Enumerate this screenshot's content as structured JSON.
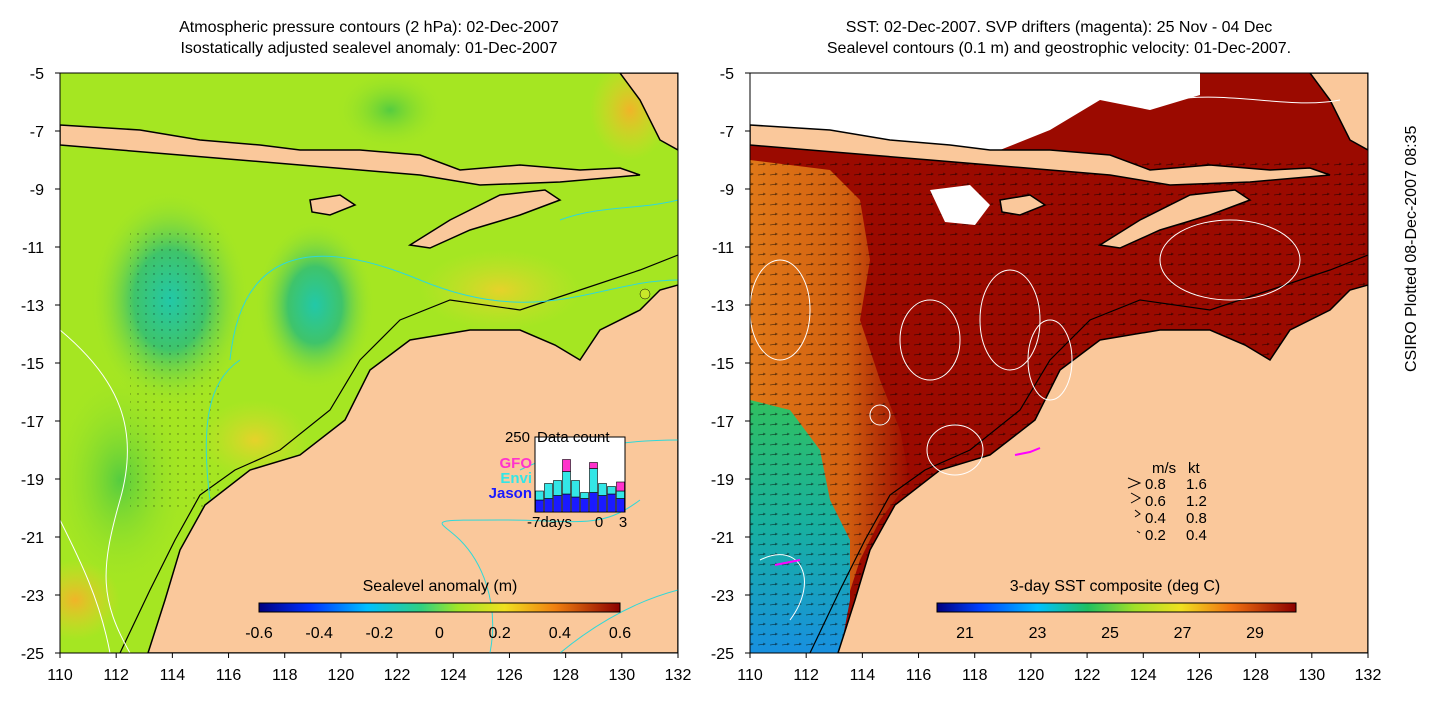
{
  "left_panel": {
    "title_line1": "Atmospheric pressure contours (2 hPa): 02-Dec-2007",
    "title_line2": "Isostatically adjusted sealevel anomaly: 01-Dec-2007",
    "colorbar_label": "Sealevel anomaly (m)",
    "colorbar_ticks": [
      "-0.6",
      "-0.4",
      "-0.2",
      "0",
      "0.2",
      "0.4",
      "0.6"
    ],
    "inset": {
      "y_tick": "250",
      "title": "Data count",
      "legend": [
        {
          "name": "GFO",
          "color": "#ff33cc"
        },
        {
          "name": "Envi",
          "color": "#33e6e6"
        },
        {
          "name": "Jason",
          "color": "#1a1aff"
        }
      ],
      "x_ticks": [
        "-7days",
        "0",
        "3"
      ],
      "bars": [
        {
          "jason": 40,
          "envi": 30,
          "gfo": 0
        },
        {
          "jason": 45,
          "envi": 50,
          "gfo": 0
        },
        {
          "jason": 55,
          "envi": 50,
          "gfo": 0
        },
        {
          "jason": 60,
          "envi": 75,
          "gfo": 40
        },
        {
          "jason": 50,
          "envi": 55,
          "gfo": 0
        },
        {
          "jason": 45,
          "envi": 20,
          "gfo": 0
        },
        {
          "jason": 65,
          "envi": 80,
          "gfo": 20
        },
        {
          "jason": 55,
          "envi": 40,
          "gfo": 0
        },
        {
          "jason": 60,
          "envi": 25,
          "gfo": 0
        },
        {
          "jason": 45,
          "envi": 25,
          "gfo": 30
        }
      ]
    }
  },
  "right_panel": {
    "title_line1": "SST: 02-Dec-2007. SVP drifters (magenta): 25 Nov - 04 Dec",
    "title_line2": "Sealevel contours (0.1 m) and geostrophic velocity: 01-Dec-2007.",
    "colorbar_label": "3-day SST composite (deg C)",
    "colorbar_ticks": [
      "21",
      "23",
      "25",
      "27",
      "29"
    ],
    "velocity_legend": {
      "header_ms": "m/s",
      "header_kt": "kt",
      "rows": [
        {
          "ms": "0.8",
          "kt": "1.6"
        },
        {
          "ms": "0.6",
          "kt": "1.2"
        },
        {
          "ms": "0.4",
          "kt": "0.8"
        },
        {
          "ms": "0.2",
          "kt": "0.4"
        }
      ]
    }
  },
  "axes": {
    "y_ticks": [
      "-5",
      "-7",
      "-9",
      "-11",
      "-13",
      "-15",
      "-17",
      "-19",
      "-21",
      "-23",
      "-25"
    ],
    "x_ticks": [
      "110",
      "112",
      "114",
      "116",
      "118",
      "120",
      "122",
      "124",
      "126",
      "128",
      "130",
      "132"
    ]
  },
  "side_label": "CSIRO Plotted 08-Dec-2007 08:35",
  "colors": {
    "land": "#fac89b",
    "sst_warm": "#9b0a00",
    "slanom_base": "#a5e622"
  }
}
